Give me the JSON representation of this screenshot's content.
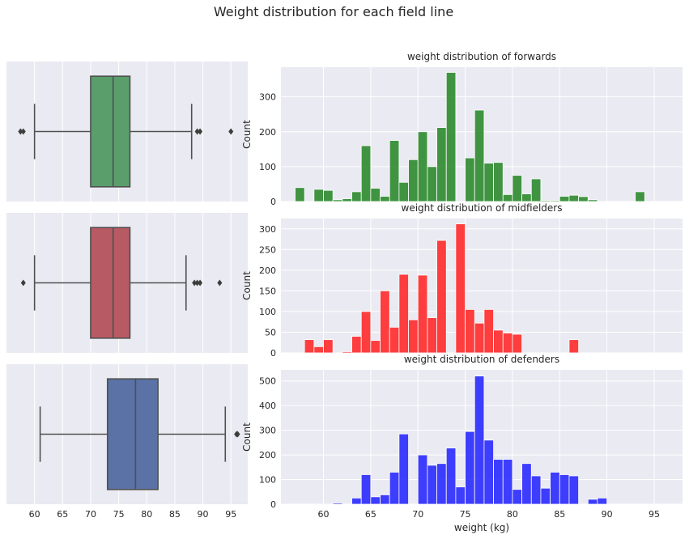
{
  "suptitle": "Weight distribution for each field line",
  "colors": {
    "panel_bg": "#eaeaf2",
    "grid": "#ffffff",
    "box_forwards": "#5a9e6b",
    "box_midfielders": "#b85a63",
    "box_defenders": "#5a72a6",
    "hist_forwards": "#2e8b2e",
    "hist_midfielders": "#ff2a2a",
    "hist_defenders": "#2a2aff",
    "line": "#505050"
  },
  "chart_data": [
    {
      "type": "box",
      "group": "forwards",
      "orientation": "horizontal",
      "xlim": [
        55,
        98
      ],
      "xticks": [],
      "whisker_low": 60,
      "q1": 70,
      "median": 74,
      "q3": 77,
      "whisker_high": 88,
      "outliers": [
        57.5,
        58,
        89,
        89.5,
        95
      ]
    },
    {
      "type": "box",
      "group": "midfielders",
      "orientation": "horizontal",
      "xlim": [
        55,
        98
      ],
      "xticks": [],
      "whisker_low": 60,
      "q1": 70,
      "median": 74,
      "q3": 77,
      "whisker_high": 87,
      "outliers": [
        58,
        88.5,
        89,
        89.5,
        93
      ]
    },
    {
      "type": "box",
      "group": "defenders",
      "orientation": "horizontal",
      "xlim": [
        55,
        98
      ],
      "xticks": [
        "60",
        "65",
        "70",
        "75",
        "80",
        "85",
        "90",
        "95"
      ],
      "whisker_low": 61,
      "q1": 73,
      "median": 78,
      "q3": 82,
      "whisker_high": 94,
      "outliers": [
        96,
        96.2
      ]
    },
    {
      "type": "bar",
      "title": "weight distribution of forwards",
      "ylabel": "Count",
      "xlabel": "",
      "xlim": [
        55.5,
        98
      ],
      "ylim": [
        0,
        385
      ],
      "yticks": [
        "0",
        "100",
        "200",
        "300"
      ],
      "xticks": [],
      "bins": [
        {
          "x0": 57,
          "x1": 58,
          "count": 40
        },
        {
          "x0": 59,
          "x1": 60,
          "count": 35
        },
        {
          "x0": 60,
          "x1": 61,
          "count": 32
        },
        {
          "x0": 61,
          "x1": 62,
          "count": 5
        },
        {
          "x0": 62,
          "x1": 63,
          "count": 8
        },
        {
          "x0": 63,
          "x1": 64,
          "count": 28
        },
        {
          "x0": 64,
          "x1": 65,
          "count": 160
        },
        {
          "x0": 65,
          "x1": 66,
          "count": 38
        },
        {
          "x0": 66,
          "x1": 67,
          "count": 15
        },
        {
          "x0": 67,
          "x1": 68,
          "count": 175
        },
        {
          "x0": 68,
          "x1": 69,
          "count": 55
        },
        {
          "x0": 69,
          "x1": 70,
          "count": 120
        },
        {
          "x0": 70,
          "x1": 71,
          "count": 200
        },
        {
          "x0": 71,
          "x1": 72,
          "count": 100
        },
        {
          "x0": 72,
          "x1": 73,
          "count": 212
        },
        {
          "x0": 73,
          "x1": 74,
          "count": 370
        },
        {
          "x0": 75,
          "x1": 76,
          "count": 125
        },
        {
          "x0": 76,
          "x1": 77,
          "count": 262
        },
        {
          "x0": 77,
          "x1": 78,
          "count": 110
        },
        {
          "x0": 78,
          "x1": 79,
          "count": 112
        },
        {
          "x0": 79,
          "x1": 80,
          "count": 20
        },
        {
          "x0": 80,
          "x1": 81,
          "count": 75
        },
        {
          "x0": 81,
          "x1": 82,
          "count": 22
        },
        {
          "x0": 82,
          "x1": 83,
          "count": 65
        },
        {
          "x0": 83,
          "x1": 84,
          "count": 3
        },
        {
          "x0": 84,
          "x1": 85,
          "count": 3
        },
        {
          "x0": 85,
          "x1": 86,
          "count": 15
        },
        {
          "x0": 86,
          "x1": 87,
          "count": 18
        },
        {
          "x0": 87,
          "x1": 88,
          "count": 14
        },
        {
          "x0": 88,
          "x1": 89,
          "count": 5
        },
        {
          "x0": 93,
          "x1": 94,
          "count": 28
        }
      ]
    },
    {
      "type": "bar",
      "title": "weight distribution of midfielders",
      "ylabel": "Count",
      "xlabel": "",
      "xlim": [
        55.5,
        98
      ],
      "ylim": [
        0,
        325
      ],
      "yticks": [
        "0",
        "50",
        "100",
        "150",
        "200",
        "250",
        "300"
      ],
      "xticks": [],
      "bins": [
        {
          "x0": 58,
          "x1": 59,
          "count": 32
        },
        {
          "x0": 59,
          "x1": 60,
          "count": 15
        },
        {
          "x0": 60,
          "x1": 61,
          "count": 32
        },
        {
          "x0": 62,
          "x1": 63,
          "count": 3
        },
        {
          "x0": 63,
          "x1": 64,
          "count": 40
        },
        {
          "x0": 64,
          "x1": 65,
          "count": 100
        },
        {
          "x0": 65,
          "x1": 66,
          "count": 30
        },
        {
          "x0": 66,
          "x1": 67,
          "count": 150
        },
        {
          "x0": 67,
          "x1": 68,
          "count": 62
        },
        {
          "x0": 68,
          "x1": 69,
          "count": 190
        },
        {
          "x0": 69,
          "x1": 70,
          "count": 80
        },
        {
          "x0": 70,
          "x1": 71,
          "count": 188
        },
        {
          "x0": 71,
          "x1": 72,
          "count": 85
        },
        {
          "x0": 72,
          "x1": 73,
          "count": 272
        },
        {
          "x0": 74,
          "x1": 75,
          "count": 312
        },
        {
          "x0": 75,
          "x1": 76,
          "count": 105
        },
        {
          "x0": 76,
          "x1": 77,
          "count": 72
        },
        {
          "x0": 77,
          "x1": 78,
          "count": 105
        },
        {
          "x0": 78,
          "x1": 79,
          "count": 55
        },
        {
          "x0": 79,
          "x1": 80,
          "count": 48
        },
        {
          "x0": 80,
          "x1": 81,
          "count": 45
        },
        {
          "x0": 86,
          "x1": 87,
          "count": 32
        }
      ]
    },
    {
      "type": "bar",
      "title": "weight distribution of defenders",
      "ylabel": "Count",
      "xlabel": "weight (kg)",
      "xlim": [
        55.5,
        98
      ],
      "ylim": [
        0,
        545
      ],
      "yticks": [
        "0",
        "100",
        "200",
        "300",
        "400",
        "500"
      ],
      "xticks": [
        "60",
        "65",
        "70",
        "75",
        "80",
        "85",
        "90",
        "95"
      ],
      "bins": [
        {
          "x0": 61,
          "x1": 62,
          "count": 5
        },
        {
          "x0": 63,
          "x1": 64,
          "count": 25
        },
        {
          "x0": 64,
          "x1": 65,
          "count": 120
        },
        {
          "x0": 65,
          "x1": 66,
          "count": 30
        },
        {
          "x0": 66,
          "x1": 67,
          "count": 38
        },
        {
          "x0": 67,
          "x1": 68,
          "count": 130
        },
        {
          "x0": 68,
          "x1": 69,
          "count": 285
        },
        {
          "x0": 70,
          "x1": 71,
          "count": 200
        },
        {
          "x0": 71,
          "x1": 72,
          "count": 158
        },
        {
          "x0": 72,
          "x1": 73,
          "count": 165
        },
        {
          "x0": 73,
          "x1": 74,
          "count": 228
        },
        {
          "x0": 74,
          "x1": 75,
          "count": 70
        },
        {
          "x0": 75,
          "x1": 76,
          "count": 295
        },
        {
          "x0": 76,
          "x1": 77,
          "count": 520
        },
        {
          "x0": 77,
          "x1": 78,
          "count": 260
        },
        {
          "x0": 78,
          "x1": 79,
          "count": 182
        },
        {
          "x0": 79,
          "x1": 80,
          "count": 182
        },
        {
          "x0": 80,
          "x1": 81,
          "count": 60
        },
        {
          "x0": 81,
          "x1": 82,
          "count": 165
        },
        {
          "x0": 82,
          "x1": 83,
          "count": 115
        },
        {
          "x0": 83,
          "x1": 84,
          "count": 65
        },
        {
          "x0": 84,
          "x1": 85,
          "count": 130
        },
        {
          "x0": 85,
          "x1": 86,
          "count": 120
        },
        {
          "x0": 86,
          "x1": 87,
          "count": 115
        },
        {
          "x0": 88,
          "x1": 89,
          "count": 20
        },
        {
          "x0": 89,
          "x1": 90,
          "count": 25
        }
      ]
    }
  ]
}
